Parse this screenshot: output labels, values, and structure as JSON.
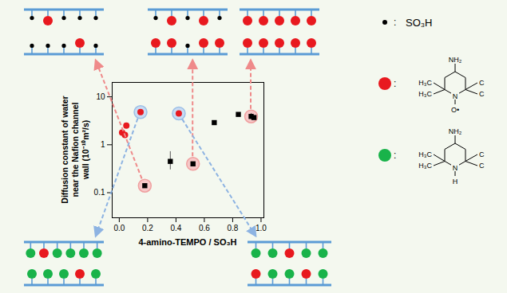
{
  "chart_data": {
    "type": "scatter",
    "x_label": "4-amino-TEMPO / SO₃H",
    "y_label": "Diffusion constant of water near the Nafion channel wall (10⁻¹⁰m²/s)",
    "log": "y",
    "grid": false,
    "xlim": [
      -0.05,
      1.02
    ],
    "xticks": [
      {
        "value": 0,
        "label": "0.0"
      },
      0.2,
      0.4,
      0.6,
      0.8,
      {
        "value": 1,
        "label": "1.0"
      }
    ],
    "ylim": [
      0.03,
      20
    ],
    "yticks": [
      0.1,
      1,
      10
    ],
    "series": [
      {
        "color": "#e8191f",
        "marker": "circle",
        "x": [
          0.02,
          0.04,
          0.05,
          0.15,
          0.42
        ],
        "values": [
          1.8,
          1.6,
          2.5,
          4.8,
          4.5
        ]
      },
      {
        "color": "#000000",
        "marker": "square",
        "x": [
          0.18,
          0.36,
          0.52,
          0.67,
          0.84,
          0.93,
          0.95
        ],
        "values": [
          0.14,
          0.45,
          0.4,
          2.9,
          4.3,
          3.9,
          3.7
        ],
        "y_low": [
          null,
          0.3,
          null,
          null,
          null,
          3.4,
          null
        ],
        "y_high": [
          null,
          0.72,
          null,
          null,
          null,
          4.5,
          null
        ]
      }
    ]
  },
  "schematics": [
    {
      "top": [
        0,
        1,
        0,
        0,
        0
      ],
      "bottom": [
        0,
        0,
        0,
        1,
        0
      ],
      "points_to": {
        "series": 1,
        "index": 0
      }
    },
    {
      "top": [
        0,
        1,
        0,
        1,
        0
      ],
      "bottom": [
        1,
        1,
        0,
        1,
        1
      ],
      "points_to": {
        "series": 1,
        "index": 2
      }
    },
    {
      "top": [
        1,
        1,
        1,
        1,
        1
      ],
      "bottom": [
        1,
        1,
        1,
        1,
        1
      ],
      "points_to": {
        "series": 1,
        "index": 5
      }
    },
    {
      "top": [
        2,
        1,
        2,
        2,
        2,
        2
      ],
      "bottom": [
        2,
        2,
        2,
        1,
        2
      ],
      "points_to": {
        "series": 0,
        "index": 3
      }
    },
    {
      "top": [
        2,
        2,
        1,
        2,
        2
      ],
      "bottom": [
        1,
        2,
        2,
        1,
        2
      ],
      "points_to": {
        "series": 0,
        "index": 4
      }
    }
  ],
  "symbols": [
    {
      "marker": "dot",
      "color": "#000000",
      "separator": ":",
      "label": "SO₃H"
    },
    {
      "marker": "circle",
      "color": "#e8191f",
      "separator": ":",
      "structure": {
        "amine": "NH₂",
        "methyl_left": [
          "H₃C",
          "H₃C"
        ],
        "methyl_right": [
          "C",
          "C"
        ],
        "ring_atom": "N",
        "n_substituent": "O•"
      }
    },
    {
      "marker": "circle",
      "color": "#19b34a",
      "separator": ":",
      "structure": {
        "amine": "NH₂",
        "methyl_left": [
          "H₃C",
          "H₃C"
        ],
        "methyl_right": [
          "C",
          "C"
        ],
        "ring_atom": "N",
        "n_substituent": "H"
      }
    }
  ]
}
